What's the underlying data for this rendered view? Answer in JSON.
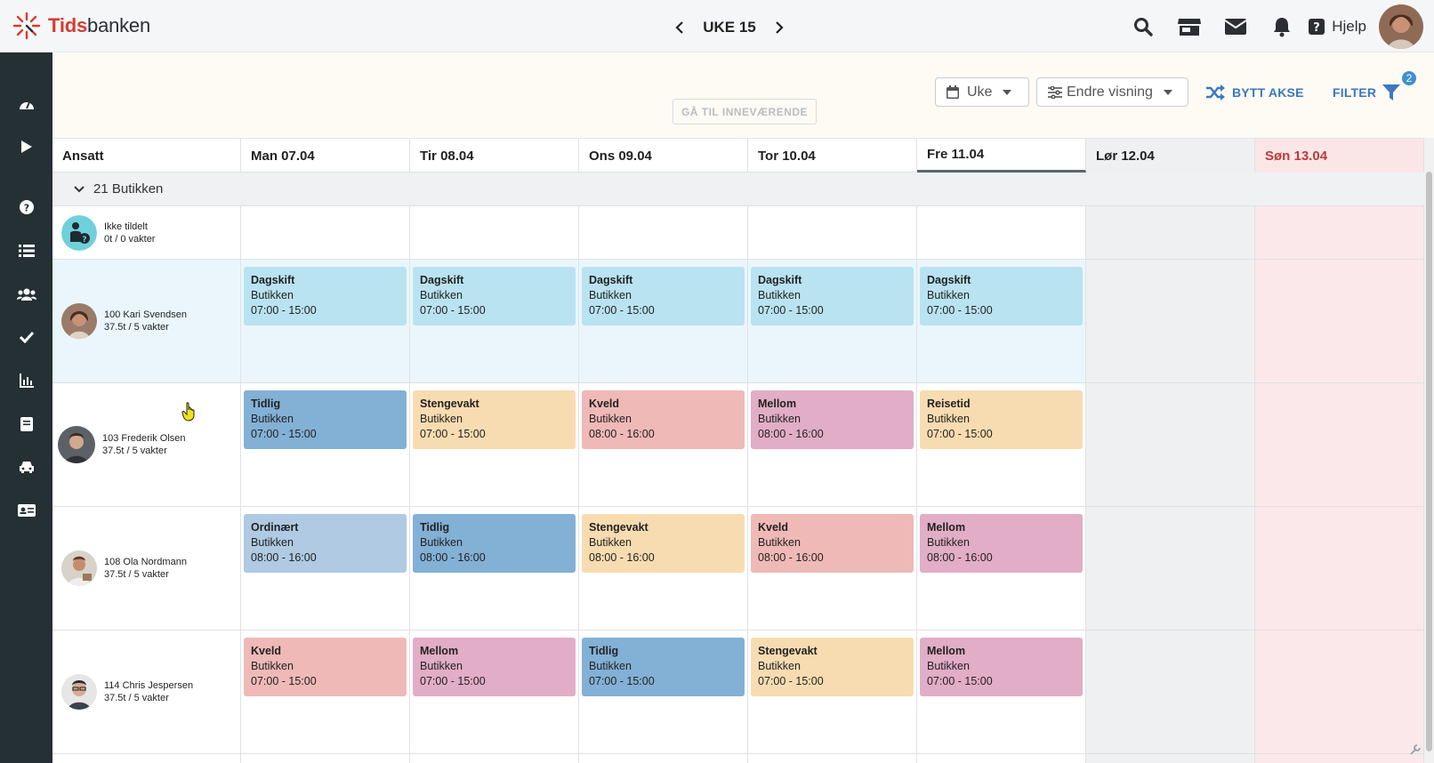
{
  "app": {
    "logo_red": "Tids",
    "logo_dark": "banken",
    "help_label": "Hjelp"
  },
  "toolbar": {
    "week_label": "UKE 15",
    "goto_current": "GÅ TIL INNEVÆRENDE",
    "view_select": "Uke",
    "change_view": "Endre visning",
    "swap_axis": "BYTT AKSE",
    "filter": "FILTER",
    "filter_count": "2"
  },
  "grid": {
    "employee_header": "Ansatt",
    "days": [
      {
        "label": "Man 07.04",
        "type": "weekday"
      },
      {
        "label": "Tir 08.04",
        "type": "weekday"
      },
      {
        "label": "Ons 09.04",
        "type": "weekday"
      },
      {
        "label": "Tor 10.04",
        "type": "weekday"
      },
      {
        "label": "Fre 11.04",
        "type": "today"
      },
      {
        "label": "Lør 12.04",
        "type": "saturday"
      },
      {
        "label": "Søn 13.04",
        "type": "sunday"
      }
    ],
    "group_label": "21 Butikken",
    "unassigned": {
      "name": "Ikke tildelt",
      "summary": "0t / 0 vakter"
    },
    "employees": [
      {
        "name": "100 Kari Svendsen",
        "summary": "37.5t / 5 vakter",
        "shifts": [
          {
            "title": "Dagskift",
            "place": "Butikken",
            "time": "07:00 - 15:00",
            "color": "dag"
          },
          {
            "title": "Dagskift",
            "place": "Butikken",
            "time": "07:00 - 15:00",
            "color": "dag"
          },
          {
            "title": "Dagskift",
            "place": "Butikken",
            "time": "07:00 - 15:00",
            "color": "dag"
          },
          {
            "title": "Dagskift",
            "place": "Butikken",
            "time": "07:00 - 15:00",
            "color": "dag"
          },
          {
            "title": "Dagskift",
            "place": "Butikken",
            "time": "07:00 - 15:00",
            "color": "dag"
          }
        ]
      },
      {
        "name": "103 Frederik Olsen",
        "summary": "37.5t / 5 vakter",
        "shifts": [
          {
            "title": "Tidlig",
            "place": "Butikken",
            "time": "07:00 - 15:00",
            "color": "tidlig"
          },
          {
            "title": "Stengevakt",
            "place": "Butikken",
            "time": "07:00 - 15:00",
            "color": "steng"
          },
          {
            "title": "Kveld",
            "place": "Butikken",
            "time": "08:00 - 16:00",
            "color": "kveld"
          },
          {
            "title": "Mellom",
            "place": "Butikken",
            "time": "08:00 - 16:00",
            "color": "mellom"
          },
          {
            "title": "Reisetid",
            "place": "Butikken",
            "time": "07:00 - 15:00",
            "color": "reise"
          }
        ]
      },
      {
        "name": "108 Ola Nordmann",
        "summary": "37.5t / 5 vakter",
        "shifts": [
          {
            "title": "Ordinært",
            "place": "Butikken",
            "time": "08:00 - 16:00",
            "color": "ordi"
          },
          {
            "title": "Tidlig",
            "place": "Butikken",
            "time": "08:00 - 16:00",
            "color": "tidlig"
          },
          {
            "title": "Stengevakt",
            "place": "Butikken",
            "time": "08:00 - 16:00",
            "color": "steng"
          },
          {
            "title": "Kveld",
            "place": "Butikken",
            "time": "08:00 - 16:00",
            "color": "kveld"
          },
          {
            "title": "Mellom",
            "place": "Butikken",
            "time": "08:00 - 16:00",
            "color": "mellom"
          }
        ]
      },
      {
        "name": "114 Chris Jespersen",
        "summary": "37.5t / 5 vakter",
        "shifts": [
          {
            "title": "Kveld",
            "place": "Butikken",
            "time": "07:00 - 15:00",
            "color": "kveld"
          },
          {
            "title": "Mellom",
            "place": "Butikken",
            "time": "07:00 - 15:00",
            "color": "mellom"
          },
          {
            "title": "Tidlig",
            "place": "Butikken",
            "time": "07:00 - 15:00",
            "color": "tidlig"
          },
          {
            "title": "Stengevakt",
            "place": "Butikken",
            "time": "07:00 - 15:00",
            "color": "steng"
          },
          {
            "title": "Mellom",
            "place": "Butikken",
            "time": "07:00 - 15:00",
            "color": "mellom"
          }
        ]
      }
    ]
  },
  "colors": {
    "sidebar": "#253035",
    "accent_blue": "#3b78c2",
    "sunday_text": "#c0393b"
  }
}
